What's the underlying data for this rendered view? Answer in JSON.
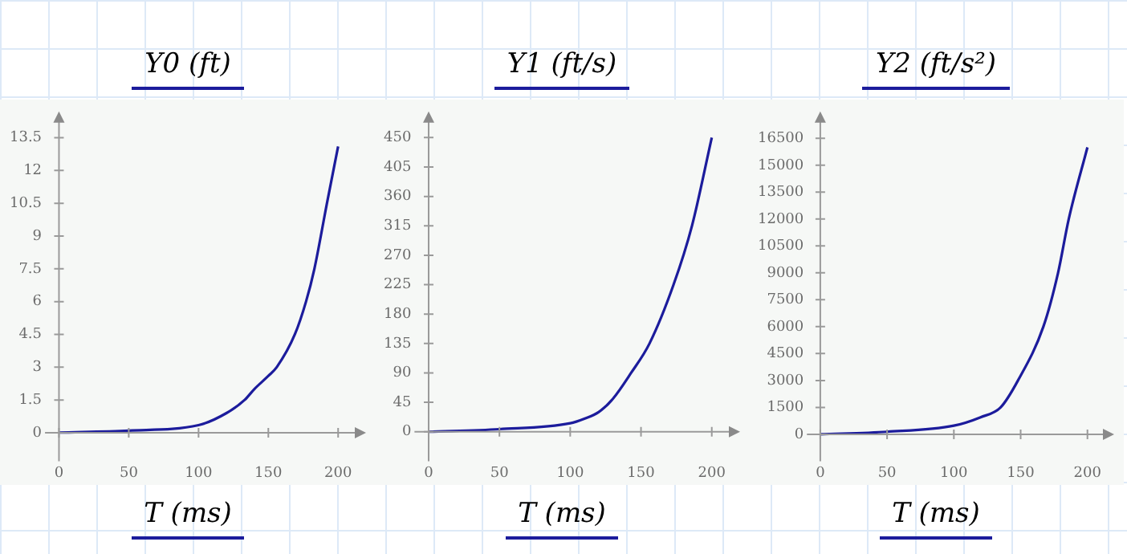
{
  "chart_data": [
    {
      "type": "line",
      "title": "Y0 (ft)",
      "xlabel": "T (ms)",
      "marker": "none",
      "x": [
        0,
        50,
        100,
        120,
        133,
        140,
        150,
        156,
        169,
        177,
        183,
        192,
        200
      ],
      "series": [
        {
          "color": "#1c1c9c",
          "values": [
            0.01,
            0.1,
            0.35,
            0.9,
            1.5,
            2.0,
            2.6,
            3.0,
            4.5,
            6.0,
            7.5,
            10.5,
            13.1
          ]
        }
      ],
      "xlim": [
        -10,
        220
      ],
      "xticks": [
        0,
        50,
        100,
        150,
        200
      ],
      "ylim": [
        -1.3,
        14.7
      ],
      "yticks": [
        0,
        1.5,
        3,
        4.5,
        6,
        7.5,
        9,
        10.5,
        12,
        13.5
      ]
    },
    {
      "type": "line",
      "title": "Y1 (ft/s)",
      "xlabel": "T (ms)",
      "marker": "none",
      "x": [
        0,
        50,
        100,
        110,
        120,
        130,
        143,
        156,
        173,
        186,
        200
      ],
      "series": [
        {
          "color": "#1c1c9c",
          "values": [
            0,
            4,
            13,
            20,
            30,
            50,
            90,
            135,
            225,
            315,
            450
          ]
        }
      ],
      "xlim": [
        -10,
        220
      ],
      "xticks": [
        0,
        50,
        100,
        150,
        200
      ],
      "ylim": [
        -45,
        490
      ],
      "yticks": [
        0,
        45,
        90,
        135,
        180,
        225,
        270,
        315,
        360,
        405,
        450
      ]
    },
    {
      "type": "line",
      "title": "Y2 (ft/s²)",
      "xlabel": "T (ms)",
      "marker": "none",
      "x": [
        0,
        50,
        100,
        120,
        135,
        148,
        167,
        178,
        186,
        200
      ],
      "series": [
        {
          "color": "#1c1c9c",
          "values": [
            0,
            140,
            480,
            950,
            1500,
            3000,
            6000,
            9000,
            12000,
            16000
          ]
        }
      ],
      "xlim": [
        -10,
        220
      ],
      "xticks": [
        0,
        50,
        100,
        150,
        200
      ],
      "ylim": [
        -1500,
        18000
      ],
      "yticks": [
        0,
        1500,
        3000,
        4500,
        6000,
        7500,
        9000,
        10500,
        12000,
        13500,
        15000,
        16500
      ]
    }
  ]
}
